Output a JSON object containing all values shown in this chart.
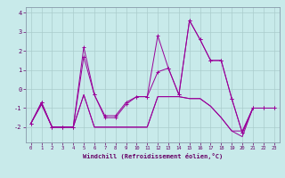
{
  "xlabel": "Windchill (Refroidissement éolien,°C)",
  "x": [
    0,
    1,
    2,
    3,
    4,
    5,
    6,
    7,
    8,
    9,
    10,
    11,
    12,
    13,
    14,
    15,
    16,
    17,
    18,
    19,
    20,
    21,
    22,
    23
  ],
  "line1": [
    -1.8,
    -0.7,
    -2.0,
    -2.0,
    -2.0,
    1.7,
    -0.3,
    -1.4,
    -1.4,
    -0.7,
    -0.4,
    -0.4,
    0.9,
    1.1,
    -0.3,
    3.6,
    2.6,
    1.5,
    1.5,
    -0.5,
    -2.3,
    -1.0,
    -1.0,
    -1.0
  ],
  "line2": [
    -1.8,
    -0.7,
    -2.0,
    -2.0,
    -2.0,
    2.2,
    -0.3,
    -1.5,
    -1.5,
    -0.8,
    -0.4,
    -0.4,
    2.8,
    1.1,
    -0.3,
    3.6,
    2.6,
    1.5,
    1.5,
    -0.5,
    -2.3,
    -1.0,
    -1.0,
    -1.0
  ],
  "line3": [
    -1.8,
    -0.8,
    -2.0,
    -2.0,
    -2.0,
    -0.3,
    -2.0,
    -2.0,
    -2.0,
    -2.0,
    -2.0,
    -2.0,
    -0.4,
    -0.4,
    -0.4,
    -0.5,
    -0.5,
    -0.9,
    -1.5,
    -2.2,
    -2.2,
    -1.0,
    -1.0,
    -1.0
  ],
  "line4": [
    -1.8,
    -0.8,
    -2.0,
    -2.0,
    -2.0,
    -0.3,
    -2.0,
    -2.0,
    -2.0,
    -2.0,
    -2.0,
    -2.0,
    -0.4,
    -0.4,
    -0.4,
    -0.5,
    -0.5,
    -0.9,
    -1.5,
    -2.2,
    -2.5,
    -1.0,
    -1.0,
    -1.0
  ],
  "bg_color": "#c8eaea",
  "grid_color": "#aacccc",
  "line_color": "#990099",
  "ylim": [
    -2.8,
    4.3
  ],
  "yticks": [
    -2,
    -1,
    0,
    1,
    2,
    3,
    4
  ],
  "xticks": [
    0,
    1,
    2,
    3,
    4,
    5,
    6,
    7,
    8,
    9,
    10,
    11,
    12,
    13,
    14,
    15,
    16,
    17,
    18,
    19,
    20,
    21,
    22,
    23
  ]
}
